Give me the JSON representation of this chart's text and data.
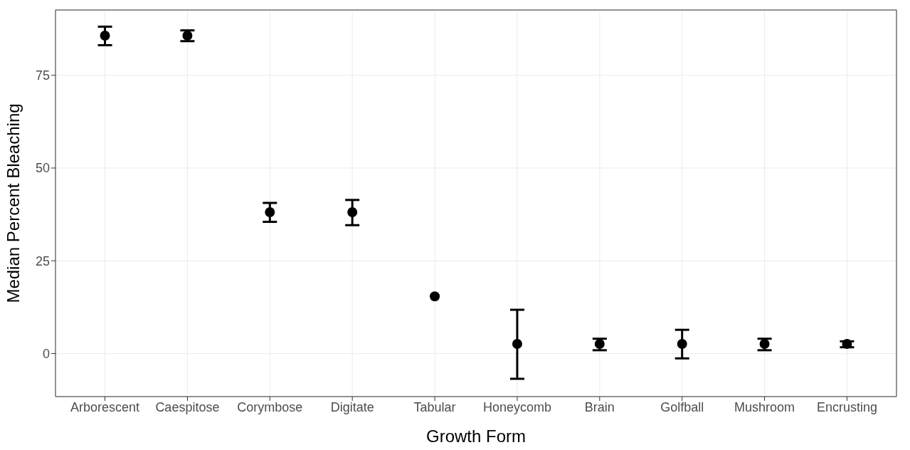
{
  "chart_data": {
    "type": "scatter",
    "xlabel": "Growth Form",
    "ylabel": "Median Percent Bleaching",
    "categories": [
      "Arborescent",
      "Caespitose",
      "Corymbose",
      "Digitate",
      "Tabular",
      "Honeycomb",
      "Brain",
      "Golfball",
      "Mushroom",
      "Encrusting"
    ],
    "values": [
      85.7,
      85.7,
      38.1,
      38.1,
      15.4,
      2.6,
      2.6,
      2.6,
      2.6,
      2.6
    ],
    "errors": [
      [
        83.1,
        88.1
      ],
      [
        84.2,
        87.1
      ],
      [
        35.5,
        40.6
      ],
      [
        34.6,
        41.4
      ],
      null,
      [
        -6.8,
        11.8
      ],
      [
        0.9,
        4.0
      ],
      [
        -1.3,
        6.4
      ],
      [
        0.9,
        4.0
      ],
      [
        1.7,
        3.3
      ]
    ],
    "color": "#000000",
    "marker": "circle",
    "ylim": [
      -11.6,
      92.6
    ],
    "yticks": [
      0,
      25,
      50,
      75
    ],
    "grid": true
  }
}
